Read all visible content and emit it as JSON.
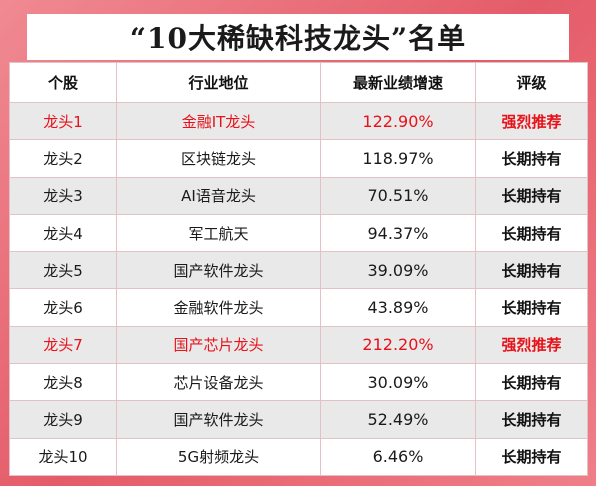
{
  "title": "“10大稀缺科技龙头”名单",
  "table": {
    "headers": [
      "个股",
      "行业地位",
      "最新业绩增速",
      "评级"
    ],
    "rows": [
      {
        "stock": "龙头1",
        "position": "金融IT龙头",
        "growth": "122.90%",
        "rating": "强烈推荐"
      },
      {
        "stock": "龙头2",
        "position": "区块链龙头",
        "growth": "118.97%",
        "rating": "长期持有"
      },
      {
        "stock": "龙头3",
        "position": "AI语音龙头",
        "growth": "70.51%",
        "rating": "长期持有"
      },
      {
        "stock": "龙头4",
        "position": "军工航天",
        "growth": "94.37%",
        "rating": "长期持有"
      },
      {
        "stock": "龙头5",
        "position": "国产软件龙头",
        "growth": "39.09%",
        "rating": "长期持有"
      },
      {
        "stock": "龙头6",
        "position": "金融软件龙头",
        "growth": "43.89%",
        "rating": "长期持有"
      },
      {
        "stock": "龙头7",
        "position": "国产芯片龙头",
        "growth": "212.20%",
        "rating": "强烈推荐"
      },
      {
        "stock": "龙头8",
        "position": "芯片设备龙头",
        "growth": "30.09%",
        "rating": "长期持有"
      },
      {
        "stock": "龙头9",
        "position": "国产软件龙头",
        "growth": "52.49%",
        "rating": "长期持有"
      },
      {
        "stock": "龙头10",
        "position": "5G射频龙头",
        "growth": "6.46%",
        "rating": "长期持有"
      }
    ]
  },
  "colors": {
    "background": "#e9707a",
    "highlight_text": "#e8121a",
    "alt_row": "#e9e9e9"
  }
}
